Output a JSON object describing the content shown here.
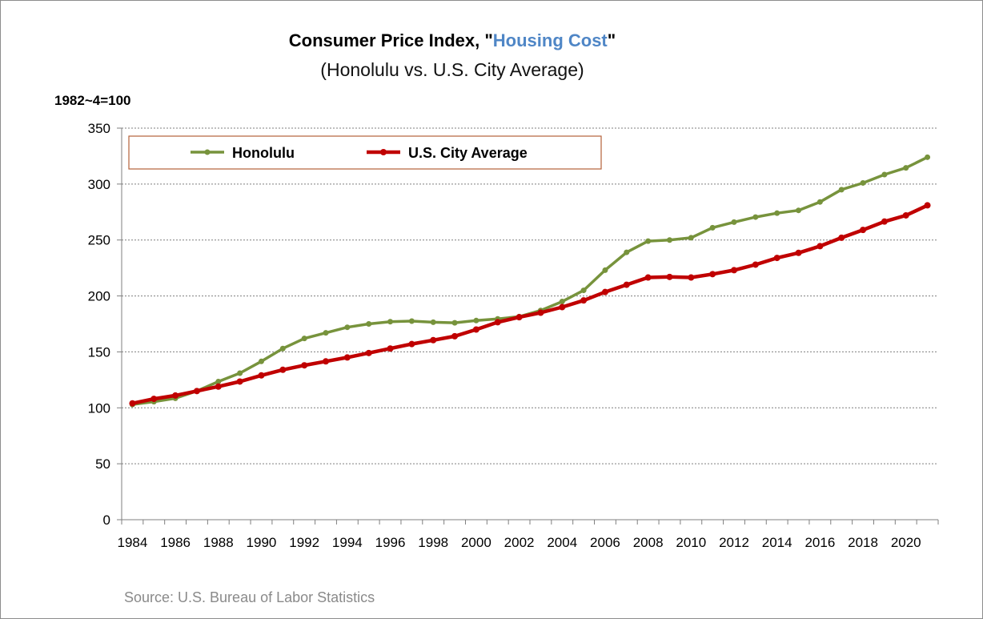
{
  "chart_data": {
    "type": "line",
    "title_prefix": "Consumer Price Index, \"",
    "title_highlight": "Housing Cost",
    "title_suffix": "\"",
    "subtitle": "(Honolulu  vs. U.S. City Average)",
    "ylabel": "1982~4=100",
    "source": "Source: U.S. Bureau of Labor Statistics",
    "ylim": [
      0,
      350
    ],
    "yticks": [
      0,
      50,
      100,
      150,
      200,
      250,
      300,
      350
    ],
    "xticks": [
      1984,
      1986,
      1988,
      1990,
      1992,
      1994,
      1996,
      1998,
      2000,
      2002,
      2004,
      2006,
      2008,
      2010,
      2012,
      2014,
      2016,
      2018,
      2020
    ],
    "grid": true,
    "legend_position": "top-left",
    "x": [
      1984,
      1985,
      1986,
      1987,
      1988,
      1989,
      1990,
      1991,
      1992,
      1993,
      1994,
      1995,
      1996,
      1997,
      1998,
      1999,
      2000,
      2001,
      2002,
      2003,
      2004,
      2005,
      2006,
      2007,
      2008,
      2009,
      2010,
      2011,
      2012,
      2013,
      2014,
      2015,
      2016,
      2017,
      2018,
      2019,
      2020,
      2021
    ],
    "series": [
      {
        "name": "Honolulu",
        "color": "#77933c",
        "values": [
          103,
          105.5,
          108.5,
          115,
          123.5,
          131,
          141.5,
          153,
          162,
          167,
          172,
          175,
          177,
          177.5,
          176.5,
          176,
          178,
          179.5,
          181.5,
          187,
          195,
          205,
          223,
          239,
          249,
          250,
          252,
          261,
          266,
          270.5,
          274,
          276.5,
          284,
          295,
          301,
          308.5,
          314.5,
          324
        ]
      },
      {
        "name": "U.S. City Average",
        "color": "#c00000",
        "values": [
          104,
          108,
          111,
          115,
          119,
          123.5,
          129,
          134,
          138,
          141.5,
          145,
          149,
          153,
          157,
          160.5,
          164,
          170,
          176.5,
          181,
          185,
          190,
          196,
          203.5,
          210,
          216.5,
          217,
          216.5,
          219.5,
          223,
          228,
          234,
          238.5,
          244.5,
          252,
          259,
          266.5,
          272,
          281
        ]
      }
    ]
  }
}
